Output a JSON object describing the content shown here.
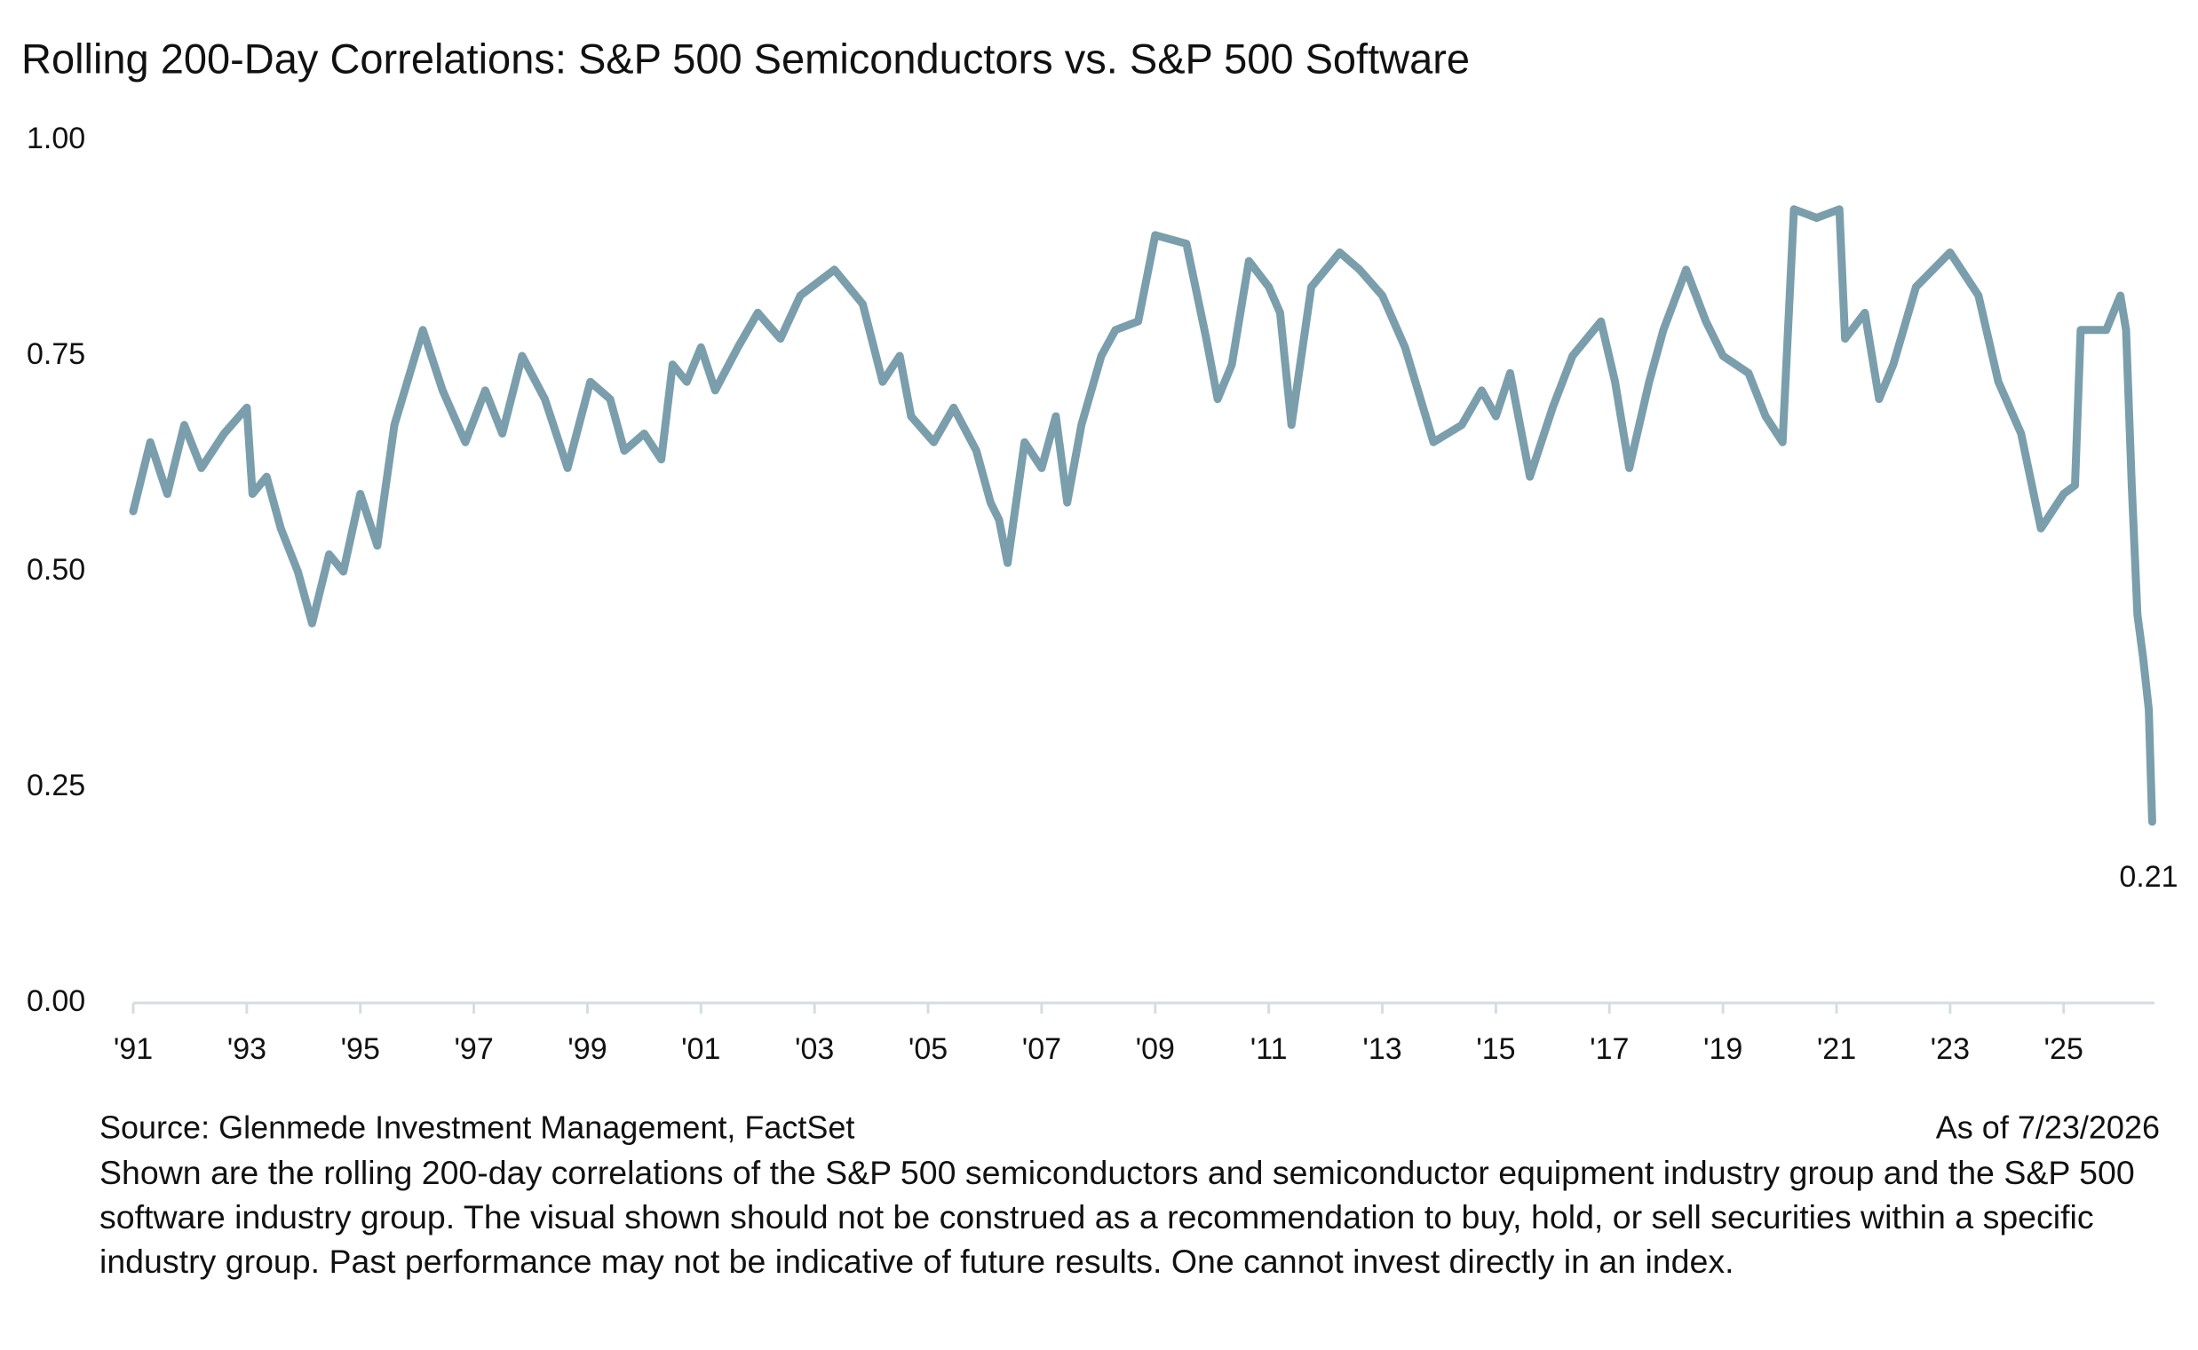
{
  "chart_data": {
    "type": "line",
    "title": "Rolling 200-Day Correlations: S&P 500 Semiconductors vs. S&P 500 Software",
    "source": "Source: Glenmede Investment Management, FactSet",
    "date_note": "As of 7/23/2026",
    "note": "Shown are the rolling 200-day correlations of the S&P 500 semiconductors and semiconductor equipment industry group and the S&P 500 software industry group. The visual shown should not be construed as a recommendation to buy, hold, or sell securities within a specific industry group. Past performance may not be indicative of future results. One cannot invest directly in an index.",
    "xlim": [
      1991,
      2026.6
    ],
    "xticks": [
      {
        "value": 1991,
        "label": "'91"
      },
      {
        "value": 1993,
        "label": "'93"
      },
      {
        "value": 1995,
        "label": "'95"
      },
      {
        "value": 1997,
        "label": "'97"
      },
      {
        "value": 1999,
        "label": "'99"
      },
      {
        "value": 2001,
        "label": "'01"
      },
      {
        "value": 2003,
        "label": "'03"
      },
      {
        "value": 2005,
        "label": "'05"
      },
      {
        "value": 2007,
        "label": "'07"
      },
      {
        "value": 2009,
        "label": "'09"
      },
      {
        "value": 2011,
        "label": "'11"
      },
      {
        "value": 2013,
        "label": "'13"
      },
      {
        "value": 2015,
        "label": "'15"
      },
      {
        "value": 2017,
        "label": "'17"
      },
      {
        "value": 2019,
        "label": "'19"
      },
      {
        "value": 2021,
        "label": "'21"
      },
      {
        "value": 2023,
        "label": "'23"
      },
      {
        "value": 2025,
        "label": "'25"
      }
    ],
    "ylim": [
      0,
      1
    ],
    "yticks": [
      {
        "value": 0,
        "label": "0.00"
      },
      {
        "value": 0.25,
        "label": "0.25"
      },
      {
        "value": 0.5,
        "label": "0.50"
      },
      {
        "value": 0.75,
        "label": "0.75"
      },
      {
        "value": 1,
        "label": "1.00"
      }
    ],
    "grid": false,
    "series": [
      {
        "color": "#7a9eac",
        "x": [
          1991.0,
          1991.3,
          1991.6,
          1991.9,
          1992.2,
          1992.6,
          1993.0,
          1993.1,
          1993.35,
          1993.6,
          1993.9,
          1994.15,
          1994.45,
          1994.7,
          1995.0,
          1995.3,
          1995.6,
          1996.1,
          1996.45,
          1996.85,
          1997.2,
          1997.5,
          1997.85,
          1998.25,
          1998.65,
          1999.05,
          1999.4,
          1999.65,
          2000.0,
          2000.3,
          2000.5,
          2000.75,
          2001.0,
          2001.25,
          2001.65,
          2002.0,
          2002.4,
          2002.75,
          2003.35,
          2003.85,
          2004.2,
          2004.5,
          2004.7,
          2005.1,
          2005.45,
          2005.85,
          2006.1,
          2006.25,
          2006.4,
          2006.7,
          2007.0,
          2007.25,
          2007.45,
          2007.7,
          2008.05,
          2008.3,
          2008.7,
          2009.0,
          2009.55,
          2009.9,
          2010.1,
          2010.35,
          2010.65,
          2011.0,
          2011.2,
          2011.4,
          2011.75,
          2012.25,
          2012.6,
          2013.0,
          2013.4,
          2013.9,
          2014.4,
          2014.75,
          2015.0,
          2015.25,
          2015.6,
          2016.0,
          2016.35,
          2016.85,
          2017.1,
          2017.35,
          2017.7,
          2017.95,
          2018.35,
          2018.7,
          2019.0,
          2019.45,
          2019.75,
          2020.05,
          2020.25,
          2020.65,
          2021.05,
          2021.15,
          2021.5,
          2021.75,
          2022.0,
          2022.4,
          2023.0,
          2023.5,
          2023.85,
          2024.25,
          2024.6,
          2025.0,
          2025.2,
          2025.3,
          2025.75,
          2026.0,
          2026.1,
          2026.2,
          2026.3,
          2026.4,
          2026.5,
          2026.56
        ],
        "values": [
          0.57,
          0.65,
          0.59,
          0.67,
          0.62,
          0.66,
          0.69,
          0.59,
          0.61,
          0.55,
          0.5,
          0.44,
          0.52,
          0.5,
          0.59,
          0.53,
          0.67,
          0.78,
          0.71,
          0.65,
          0.71,
          0.66,
          0.75,
          0.7,
          0.62,
          0.72,
          0.7,
          0.64,
          0.66,
          0.63,
          0.74,
          0.72,
          0.76,
          0.71,
          0.76,
          0.8,
          0.77,
          0.82,
          0.85,
          0.81,
          0.72,
          0.75,
          0.68,
          0.65,
          0.69,
          0.64,
          0.58,
          0.56,
          0.51,
          0.65,
          0.62,
          0.68,
          0.58,
          0.67,
          0.75,
          0.78,
          0.79,
          0.89,
          0.88,
          0.77,
          0.7,
          0.74,
          0.86,
          0.83,
          0.8,
          0.67,
          0.83,
          0.87,
          0.85,
          0.82,
          0.76,
          0.65,
          0.67,
          0.71,
          0.68,
          0.73,
          0.61,
          0.69,
          0.75,
          0.79,
          0.72,
          0.62,
          0.72,
          0.78,
          0.85,
          0.79,
          0.75,
          0.73,
          0.68,
          0.65,
          0.92,
          0.91,
          0.92,
          0.77,
          0.8,
          0.7,
          0.74,
          0.83,
          0.87,
          0.82,
          0.72,
          0.66,
          0.55,
          0.59,
          0.6,
          0.78,
          0.78,
          0.82,
          0.78,
          0.6,
          0.45,
          0.4,
          0.34,
          0.21
        ]
      }
    ]
  }
}
